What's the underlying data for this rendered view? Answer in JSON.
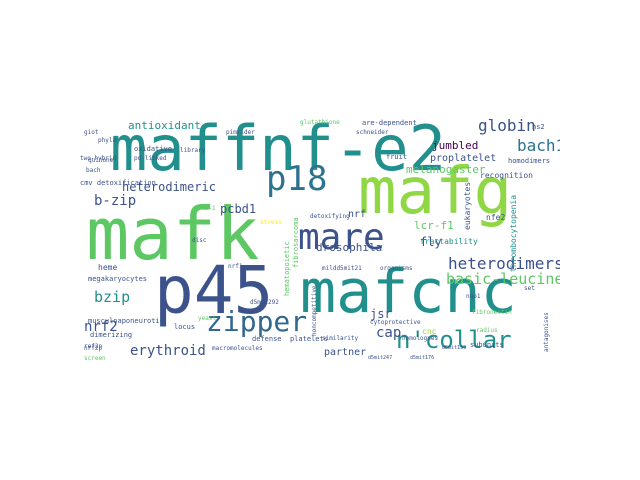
{
  "word_cloud": {
    "colors": {
      "dark_purple": "#440154",
      "indigo": "#3b528b",
      "teal": "#21908d",
      "green": "#5dc863",
      "lime": "#8fd744",
      "yellow": "#fde725",
      "dark_teal": "#2c728e",
      "blue_teal": "#31688e"
    },
    "words": [
      {
        "text": "maffnf-e2"
      },
      {
        "text": "mafg"
      },
      {
        "text": "mafk"
      },
      {
        "text": "p45"
      },
      {
        "text": "mafcnc"
      },
      {
        "text": "mare"
      },
      {
        "text": "p18"
      },
      {
        "text": "zipper"
      },
      {
        "text": "n'collar"
      },
      {
        "text": "globin"
      },
      {
        "text": "bach1"
      },
      {
        "text": "heterodimers"
      },
      {
        "text": "basic-leucine"
      },
      {
        "text": "antioxidant"
      },
      {
        "text": "melanogaster"
      },
      {
        "text": "heterodimeric"
      },
      {
        "text": "b-zip"
      },
      {
        "text": "bzip"
      },
      {
        "text": "nrf2"
      },
      {
        "text": "erythroid"
      },
      {
        "text": "cap"
      },
      {
        "text": "drosophila"
      },
      {
        "text": "jumbled"
      },
      {
        "text": "proplatelet"
      },
      {
        "text": "fly"
      },
      {
        "text": "lcr-f1"
      },
      {
        "text": "pcbd1"
      },
      {
        "text": "nrf"
      },
      {
        "text": "jsr"
      },
      {
        "text": "partner"
      },
      {
        "text": "heme"
      },
      {
        "text": "tractability"
      },
      {
        "text": "thrombocytopenia"
      },
      {
        "text": "eukaryotes"
      },
      {
        "text": "nfe2"
      },
      {
        "text": "hs2"
      },
      {
        "text": "recognition"
      },
      {
        "text": "fruit"
      },
      {
        "text": "homodimers"
      },
      {
        "text": "are-dependent"
      },
      {
        "text": "schneider"
      },
      {
        "text": "cnc"
      },
      {
        "text": "megakaryocytes"
      },
      {
        "text": "musculoaponeurotic"
      },
      {
        "text": "oxidative"
      },
      {
        "text": "cmv detoxification"
      },
      {
        "text": "detoxifying"
      },
      {
        "text": "hematopoietic"
      },
      {
        "text": "fibrosarcoma"
      },
      {
        "text": "subunits"
      },
      {
        "text": "platelets"
      },
      {
        "text": "defense"
      },
      {
        "text": "macromolecules"
      },
      {
        "text": "dimerizing"
      },
      {
        "text": "library"
      },
      {
        "text": "pd-linked"
      },
      {
        "text": "two-hybrid"
      },
      {
        "text": "quinone"
      },
      {
        "text": "bach"
      },
      {
        "text": "screen"
      },
      {
        "text": "nrf2p"
      },
      {
        "text": "organisms"
      },
      {
        "text": "similarity"
      },
      {
        "text": "homologues"
      },
      {
        "text": "cytoprotective"
      },
      {
        "text": "pimrider"
      },
      {
        "text": "locus"
      },
      {
        "text": "disc"
      },
      {
        "text": "mildd5mit21"
      },
      {
        "text": "d5mit292"
      },
      {
        "text": "d5mit247"
      },
      {
        "text": "d5mit176"
      },
      {
        "text": "d5mit139"
      },
      {
        "text": "noncompetitive"
      },
      {
        "text": "stress"
      },
      {
        "text": "ppkb-1"
      },
      {
        "text": "yeast"
      },
      {
        "text": "phyla"
      },
      {
        "text": "giot"
      },
      {
        "text": "glutathione"
      },
      {
        "text": "radius"
      },
      {
        "text": "antagonises"
      },
      {
        "text": "set"
      },
      {
        "text": "nqo1"
      },
      {
        "text": "fibronectin"
      },
      {
        "text": "nrf1"
      },
      {
        "text": "ref2p"
      }
    ]
  }
}
